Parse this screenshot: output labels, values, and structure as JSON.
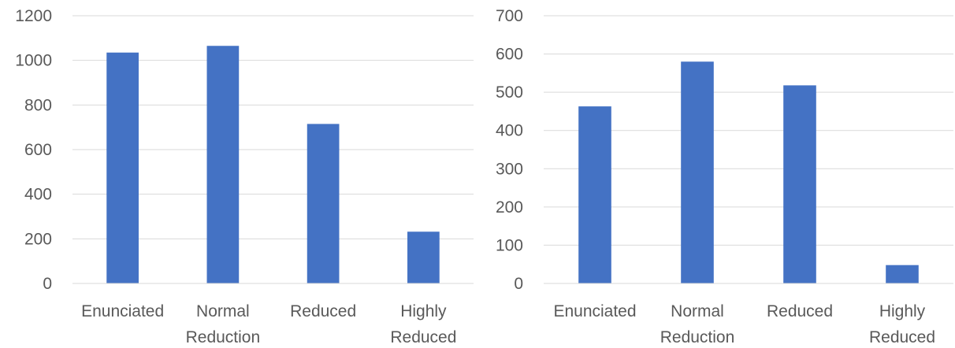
{
  "chart_data": [
    {
      "type": "bar",
      "categories": [
        "Enunciated",
        "Normal Reduction",
        "Reduced",
        "Highly Reduced"
      ],
      "category_lines": [
        [
          "Enunciated"
        ],
        [
          "Normal",
          "Reduction"
        ],
        [
          "Reduced"
        ],
        [
          "Highly",
          "Reduced"
        ]
      ],
      "values": [
        1035,
        1065,
        715,
        232
      ],
      "ylim": [
        0,
        1200
      ],
      "yticks": [
        "0",
        "200",
        "400",
        "600",
        "800",
        "1000",
        "1200"
      ],
      "grid": true,
      "bar_color": "#4472C4",
      "grid_color": "#d9d9d9",
      "text_color": "#595959"
    },
    {
      "type": "bar",
      "categories": [
        "Enunciated",
        "Normal Reduction",
        "Reduced",
        "Highly Reduced"
      ],
      "category_lines": [
        [
          "Enunciated"
        ],
        [
          "Normal",
          "Reduction"
        ],
        [
          "Reduced"
        ],
        [
          "Highly",
          "Reduced"
        ]
      ],
      "values": [
        463,
        580,
        518,
        48
      ],
      "ylim": [
        0,
        700
      ],
      "yticks": [
        "0",
        "100",
        "200",
        "300",
        "400",
        "500",
        "600",
        "700"
      ],
      "grid": true,
      "bar_color": "#4472C4",
      "grid_color": "#d9d9d9",
      "text_color": "#595959"
    }
  ]
}
